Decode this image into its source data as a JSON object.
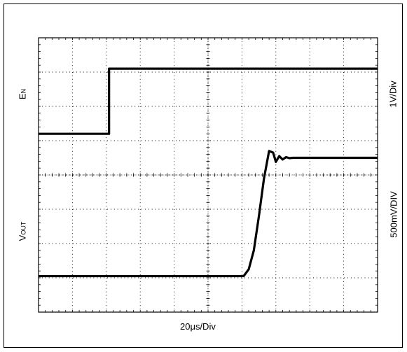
{
  "chart_data": {
    "type": "line",
    "title": "",
    "xlabel": "20μs/Div",
    "ylabel_left_top": {
      "main": "E",
      "sub": "N"
    },
    "ylabel_left_bottom": {
      "main": "V",
      "sub": "OUT"
    },
    "ylabel_right_top": "1V/Div",
    "ylabel_right_bottom": "500mV/DIV",
    "grid": true,
    "x_divisions": 10,
    "y_divisions": 8,
    "x_unit": "div (20μs/Div)",
    "y_unit": "div",
    "xlim": [
      0,
      10
    ],
    "ylim": [
      -4,
      4
    ],
    "series": [
      {
        "name": "EN",
        "x": [
          0,
          2.08,
          2.08,
          10
        ],
        "y": [
          1.2,
          1.2,
          3.1,
          3.1
        ]
      },
      {
        "name": "VOUT",
        "x": [
          0,
          6.05,
          6.2,
          6.35,
          6.5,
          6.65,
          6.8,
          6.92,
          7.0,
          7.1,
          7.2,
          7.3,
          7.4,
          7.5,
          7.6,
          10
        ],
        "y": [
          -2.95,
          -2.95,
          -2.75,
          -2.2,
          -1.2,
          -0.1,
          0.7,
          0.65,
          0.38,
          0.55,
          0.45,
          0.52,
          0.49,
          0.5,
          0.5,
          0.5
        ]
      }
    ]
  }
}
